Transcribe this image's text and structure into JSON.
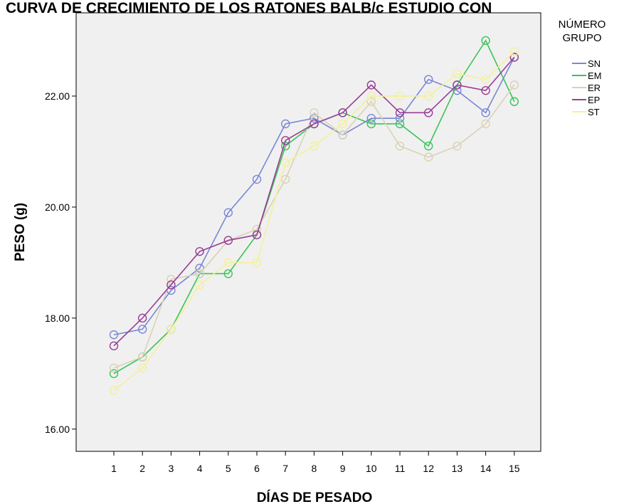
{
  "chart_data": {
    "type": "line",
    "title": "CURVA DE CRECIMIENTO DE LOS RATONES BALB/c ESTUDIO CON",
    "xlabel": "DÍAS DE PESADO",
    "ylabel": "PESO (g)",
    "categories": [
      "1",
      "2",
      "3",
      "4",
      "5",
      "6",
      "7",
      "8",
      "9",
      "10",
      "11",
      "12",
      "13",
      "14",
      "15"
    ],
    "y_ticks": [
      "16.00",
      "18.00",
      "20.00",
      "22.00"
    ],
    "ylim": [
      15.6,
      23.5
    ],
    "grid": false,
    "legend": {
      "title_line1": "NÚMERO",
      "title_line2": "GRUPO",
      "placement": "right"
    },
    "series": [
      {
        "name": "SN",
        "color": "#7a87d6",
        "values": [
          17.7,
          17.8,
          18.5,
          18.9,
          19.9,
          20.5,
          21.5,
          21.6,
          21.3,
          21.6,
          21.6,
          22.3,
          22.1,
          21.7,
          22.7
        ]
      },
      {
        "name": "EM",
        "color": "#3cc35a",
        "values": [
          17.0,
          17.3,
          17.8,
          18.8,
          18.8,
          19.5,
          21.1,
          21.5,
          21.7,
          21.5,
          21.5,
          21.1,
          22.2,
          23.0,
          21.9
        ]
      },
      {
        "name": "ER",
        "color": "#d9d2b4",
        "values": [
          17.1,
          17.3,
          18.7,
          18.8,
          19.4,
          19.6,
          20.5,
          21.7,
          21.3,
          21.9,
          21.1,
          20.9,
          21.1,
          21.5,
          22.2
        ]
      },
      {
        "name": "EP",
        "color": "#9a3d96",
        "values": [
          17.5,
          18.0,
          18.6,
          19.2,
          19.4,
          19.5,
          21.2,
          21.5,
          21.7,
          22.2,
          21.7,
          21.7,
          22.2,
          22.1,
          22.7
        ]
      },
      {
        "name": "ST",
        "color": "#f4f09a",
        "values": [
          16.7,
          17.1,
          17.8,
          18.6,
          19.0,
          19.0,
          20.8,
          21.1,
          21.5,
          22.0,
          22.0,
          22.0,
          22.4,
          22.3,
          22.8
        ]
      }
    ]
  }
}
